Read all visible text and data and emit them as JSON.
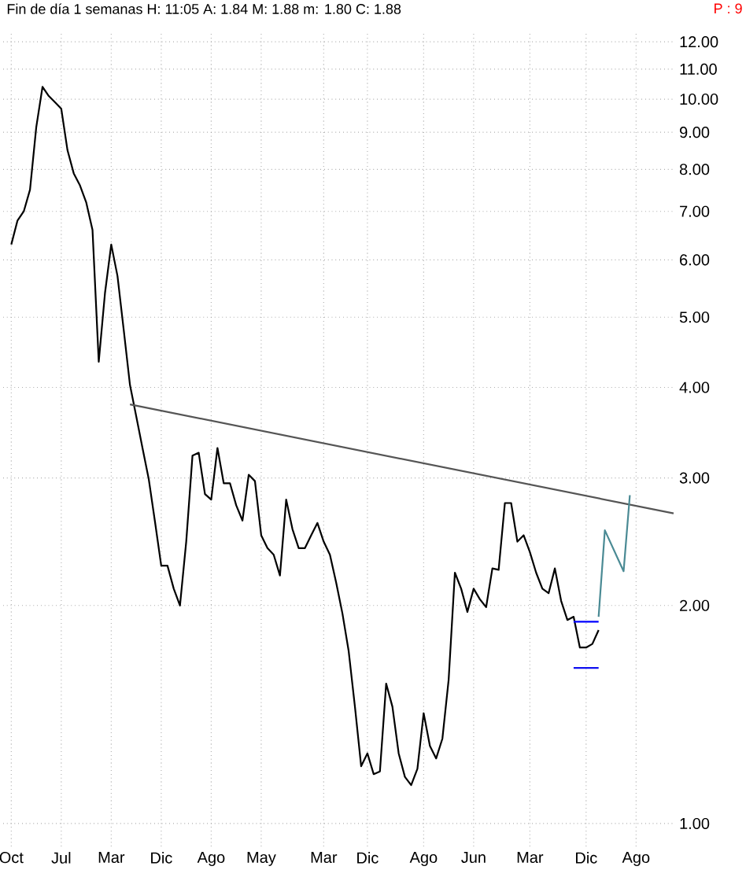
{
  "chart_data": {
    "type": "line",
    "title": "Fin de día 1 semanas  H: 11:05  A: 1.84  M: 1.88  m: 1.80  C: 1.88",
    "annotations": [
      "P : 9"
    ],
    "categories": [
      "Oct",
      null,
      null,
      null,
      null,
      null,
      null,
      null,
      "Jul",
      null,
      null,
      null,
      null,
      null,
      null,
      null,
      "Mar",
      null,
      null,
      null,
      null,
      null,
      null,
      null,
      "Dic",
      null,
      null,
      null,
      null,
      null,
      null,
      null,
      "Ago",
      null,
      null,
      null,
      null,
      null,
      null,
      null,
      "May",
      null,
      null,
      null,
      null,
      null,
      null,
      null,
      null,
      null,
      "Mar",
      null,
      null,
      null,
      null,
      null,
      null,
      "Dic",
      null,
      null,
      null,
      null,
      null,
      null,
      null,
      null,
      "Ago",
      null,
      null,
      null,
      null,
      null,
      null,
      null,
      "Jun",
      null,
      null,
      null,
      null,
      null,
      null,
      null,
      null,
      "Mar",
      null,
      null,
      null,
      null,
      null,
      null,
      null,
      null,
      "Dic",
      null,
      null,
      null,
      null,
      null,
      null,
      null,
      "Ago",
      null,
      null,
      null,
      null,
      null,
      null
    ],
    "series": [
      {
        "color": "#000000",
        "values": [
          6.3,
          6.8,
          7.0,
          7.5,
          9.15,
          10.4,
          10.1,
          9.9,
          9.7,
          8.5,
          7.9,
          7.6,
          7.2,
          6.6,
          4.34,
          5.4,
          6.3,
          5.7,
          4.8,
          4.03,
          3.65,
          3.3,
          2.99,
          2.61,
          2.27,
          2.27,
          2.11,
          2.0,
          2.45,
          3.22,
          3.25,
          2.85,
          2.8,
          3.3,
          2.95,
          2.95,
          2.75,
          2.62,
          3.03,
          2.97,
          2.5,
          2.4,
          2.35,
          2.2,
          2.8,
          2.55,
          2.4,
          2.4,
          2.5,
          2.6,
          2.45,
          2.35,
          2.15,
          1.95,
          1.73,
          1.45,
          1.2,
          1.25,
          1.17,
          1.18,
          1.56,
          1.45,
          1.25,
          1.16,
          1.13,
          1.19,
          1.42,
          1.28,
          1.23,
          1.31,
          1.58,
          2.22,
          2.11,
          1.96,
          2.11,
          2.04,
          1.99,
          2.25,
          2.24,
          2.77,
          2.77,
          2.45,
          2.5,
          2.37,
          2.22,
          2.11,
          2.08,
          2.25,
          2.03,
          1.91,
          1.93,
          1.75,
          1.75,
          1.77,
          1.85,
          null,
          null,
          null,
          null,
          null,
          null,
          null,
          null,
          null,
          null,
          null,
          null
        ]
      },
      {
        "color": "#555555",
        "values": [
          null,
          null,
          null,
          null,
          null,
          null,
          null,
          null,
          null,
          null,
          null,
          null,
          null,
          null,
          null,
          null,
          null,
          null,
          null,
          3.79,
          null,
          null,
          null,
          null,
          null,
          null,
          null,
          null,
          null,
          null,
          null,
          null,
          null,
          null,
          null,
          null,
          null,
          null,
          null,
          null,
          null,
          null,
          null,
          null,
          null,
          null,
          null,
          null,
          null,
          null,
          null,
          null,
          null,
          null,
          null,
          null,
          null,
          null,
          null,
          null,
          null,
          null,
          null,
          null,
          null,
          null,
          null,
          null,
          null,
          null,
          null,
          null,
          null,
          null,
          null,
          null,
          null,
          null,
          null,
          null,
          null,
          null,
          null,
          null,
          null,
          null,
          null,
          null,
          null,
          null,
          null,
          null,
          null,
          null,
          null,
          null,
          null,
          null,
          null,
          null,
          null,
          null,
          null,
          null,
          null,
          null,
          2.68
        ]
      },
      {
        "color": "#4a8a94",
        "values": [
          null,
          null,
          null,
          null,
          null,
          null,
          null,
          null,
          null,
          null,
          null,
          null,
          null,
          null,
          null,
          null,
          null,
          null,
          null,
          null,
          null,
          null,
          null,
          null,
          null,
          null,
          null,
          null,
          null,
          null,
          null,
          null,
          null,
          null,
          null,
          null,
          null,
          null,
          null,
          null,
          null,
          null,
          null,
          null,
          null,
          null,
          null,
          null,
          null,
          null,
          null,
          null,
          null,
          null,
          null,
          null,
          null,
          null,
          null,
          null,
          null,
          null,
          null,
          null,
          null,
          null,
          null,
          null,
          null,
          null,
          null,
          null,
          null,
          null,
          null,
          null,
          null,
          null,
          null,
          null,
          null,
          null,
          null,
          null,
          null,
          null,
          null,
          null,
          null,
          null,
          null,
          null,
          null,
          null,
          1.93,
          2.54,
          null,
          null,
          2.23,
          2.84,
          null,
          null,
          null,
          null,
          null,
          null,
          null
        ]
      },
      {
        "color": "#0000ff",
        "values": [
          null,
          null,
          null,
          null,
          null,
          null,
          null,
          null,
          null,
          null,
          null,
          null,
          null,
          null,
          null,
          null,
          null,
          null,
          null,
          null,
          null,
          null,
          null,
          null,
          null,
          null,
          null,
          null,
          null,
          null,
          null,
          null,
          null,
          null,
          null,
          null,
          null,
          null,
          null,
          null,
          null,
          null,
          null,
          null,
          null,
          null,
          null,
          null,
          null,
          null,
          null,
          null,
          null,
          null,
          null,
          null,
          null,
          null,
          null,
          null,
          null,
          null,
          null,
          null,
          null,
          null,
          null,
          null,
          null,
          null,
          null,
          null,
          null,
          null,
          null,
          null,
          null,
          null,
          null,
          null,
          null,
          null,
          null,
          null,
          null,
          null,
          null,
          null,
          null,
          null,
          1.9,
          1.9,
          1.9,
          1.9,
          1.9,
          null,
          null,
          null,
          null,
          null,
          null,
          null,
          null,
          null,
          null,
          null,
          null
        ]
      },
      {
        "color": "#1010f0",
        "values": [
          null,
          null,
          null,
          null,
          null,
          null,
          null,
          null,
          null,
          null,
          null,
          null,
          null,
          null,
          null,
          null,
          null,
          null,
          null,
          null,
          null,
          null,
          null,
          null,
          null,
          null,
          null,
          null,
          null,
          null,
          null,
          null,
          null,
          null,
          null,
          null,
          null,
          null,
          null,
          null,
          null,
          null,
          null,
          null,
          null,
          null,
          null,
          null,
          null,
          null,
          null,
          null,
          null,
          null,
          null,
          null,
          null,
          null,
          null,
          null,
          null,
          null,
          null,
          null,
          null,
          null,
          null,
          null,
          null,
          null,
          null,
          null,
          null,
          null,
          null,
          null,
          null,
          null,
          null,
          null,
          null,
          null,
          null,
          null,
          null,
          null,
          null,
          null,
          null,
          null,
          1.64,
          1.64,
          1.64,
          1.64,
          1.64,
          null,
          null,
          null,
          null,
          null,
          null,
          null,
          null,
          null,
          null,
          null,
          null
        ]
      }
    ],
    "ylim": [
      0.93,
      12.4
    ],
    "yticks": [
      {
        "value": 1,
        "label": "1.00"
      },
      {
        "value": 2,
        "label": "2.00"
      },
      {
        "value": 3,
        "label": "3.00"
      },
      {
        "value": 4,
        "label": "4.00"
      },
      {
        "value": 5,
        "label": "5.00"
      },
      {
        "value": 6,
        "label": "6.00"
      },
      {
        "value": 7,
        "label": "7.00"
      },
      {
        "value": 8,
        "label": "8.00"
      },
      {
        "value": 9,
        "label": "9.00"
      },
      {
        "value": 10,
        "label": "10.00"
      },
      {
        "value": 11,
        "label": "11.00"
      },
      {
        "value": 12,
        "label": "12.00"
      }
    ],
    "log": true,
    "grid": true,
    "line_style": "solid"
  }
}
